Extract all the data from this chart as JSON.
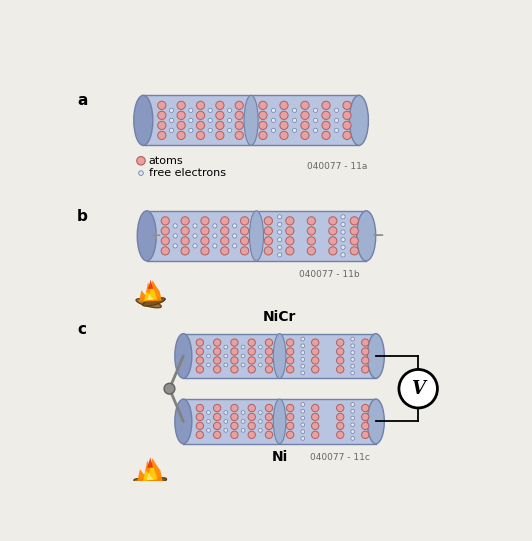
{
  "bg_color": "#eeede8",
  "conductor_fill": "#b8c4e0",
  "conductor_edge": "#7080a8",
  "end_cap_fill": "#8898c0",
  "end_cap_fill2": "#a0b0d0",
  "atom_fill": "#e8a0a0",
  "atom_edge": "#b06060",
  "electron_fill": "#e0e8f8",
  "electron_edge": "#7080a0",
  "label_a": "a",
  "label_b": "b",
  "label_c": "c",
  "legend_atoms": "atoms",
  "legend_electrons": "free electrons",
  "label_nicr": "NiCr",
  "label_ni": "Ni",
  "code_a": "040077 - 11a",
  "code_b": "040077 - 11b",
  "code_c": "040077 - 11c",
  "voltmeter_label": "V",
  "plus_color": "#909090",
  "minus_color": "#909090",
  "wire_color": "#808080",
  "junction_color": "#909090"
}
